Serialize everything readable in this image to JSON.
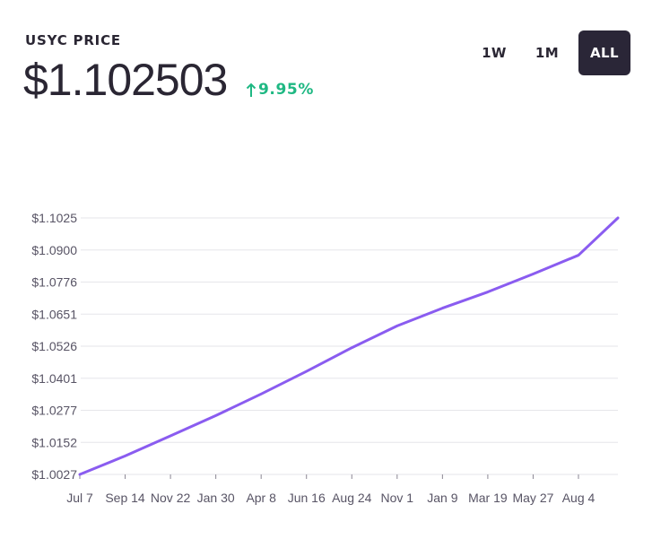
{
  "header": {
    "label": "USYC PRICE",
    "price": "$1.102503",
    "change": "9.95%",
    "change_color": "#1fb883"
  },
  "range_toggle": {
    "options": [
      "1W",
      "1M",
      "ALL"
    ],
    "selected": "ALL",
    "selected_bg": "#2a2637"
  },
  "chart_data": {
    "type": "line",
    "line_color": "#8a5cf0",
    "grid": true,
    "y_tick_labels": [
      "$1.1025",
      "$1.0900",
      "$1.0776",
      "$1.0651",
      "$1.0526",
      "$1.0401",
      "$1.0277",
      "$1.0152",
      "$1.0027"
    ],
    "x_tick_labels": [
      "Jul 7",
      "Sep 14",
      "Nov 22",
      "Jan 30",
      "Apr 8",
      "Jun 16",
      "Aug 24",
      "Nov 1",
      "Jan 9",
      "Mar 19",
      "May 27",
      "Aug 4"
    ],
    "ylim": [
      1.0027,
      1.1025
    ],
    "series": [
      {
        "x": [
          "Jul 7",
          "Sep 14",
          "Nov 22",
          "Jan 30",
          "Apr 8",
          "Jun 16",
          "Aug 24",
          "Nov 1",
          "Jan 9",
          "Mar 19",
          "May 27",
          "Aug 4"
        ],
        "values": [
          1.0027,
          1.0099,
          1.0177,
          1.0256,
          1.034,
          1.0428,
          1.052,
          1.0605,
          1.0674,
          1.0737,
          1.0807,
          1.088
        ]
      }
    ],
    "last_value": 1.1025
  }
}
